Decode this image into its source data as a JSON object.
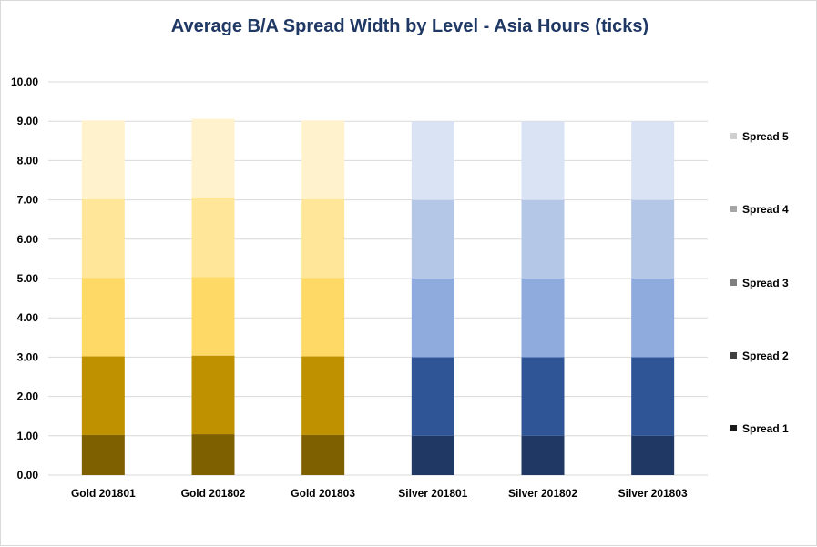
{
  "chart_data": {
    "type": "bar",
    "stacked": true,
    "title": "Average B/A Spread Width by Level - Asia Hours (ticks)",
    "xlabel": "",
    "ylabel": "",
    "ylim": [
      0,
      10
    ],
    "ytick_step": 1,
    "ytick_labels": [
      "0.00",
      "1.00",
      "2.00",
      "3.00",
      "4.00",
      "5.00",
      "6.00",
      "7.00",
      "8.00",
      "9.00",
      "10.00"
    ],
    "grid": true,
    "legend_position": "right",
    "categories": [
      "Gold 201801",
      "Gold 201802",
      "Gold 201803",
      "Silver 201801",
      "Silver 201802",
      "Silver 201803"
    ],
    "series": [
      {
        "name": "Spread 1",
        "values": [
          1.02,
          1.04,
          1.02,
          1.0,
          1.0,
          1.0
        ],
        "legend_color": "#1a1a1a"
      },
      {
        "name": "Spread 2",
        "values": [
          2.0,
          2.0,
          2.0,
          2.0,
          2.0,
          2.0
        ],
        "legend_color": "#404040"
      },
      {
        "name": "Spread 3",
        "values": [
          2.0,
          2.0,
          2.0,
          2.0,
          2.0,
          2.0
        ],
        "legend_color": "#7f7f7f"
      },
      {
        "name": "Spread 4",
        "values": [
          2.0,
          2.02,
          2.0,
          2.0,
          2.0,
          2.0
        ],
        "legend_color": "#a6a6a6"
      },
      {
        "name": "Spread 5",
        "values": [
          2.0,
          2.0,
          2.0,
          2.0,
          2.0,
          2.0
        ],
        "legend_color": "#d0d0d0"
      }
    ],
    "category_palettes": {
      "gold": [
        "#7f6000",
        "#bf9000",
        "#ffd966",
        "#ffe699",
        "#fff2cc"
      ],
      "silver": [
        "#1f3864",
        "#2f5597",
        "#8faadc",
        "#b4c7e7",
        "#dae3f3"
      ]
    },
    "category_groups": [
      "gold",
      "gold",
      "gold",
      "silver",
      "silver",
      "silver"
    ]
  }
}
